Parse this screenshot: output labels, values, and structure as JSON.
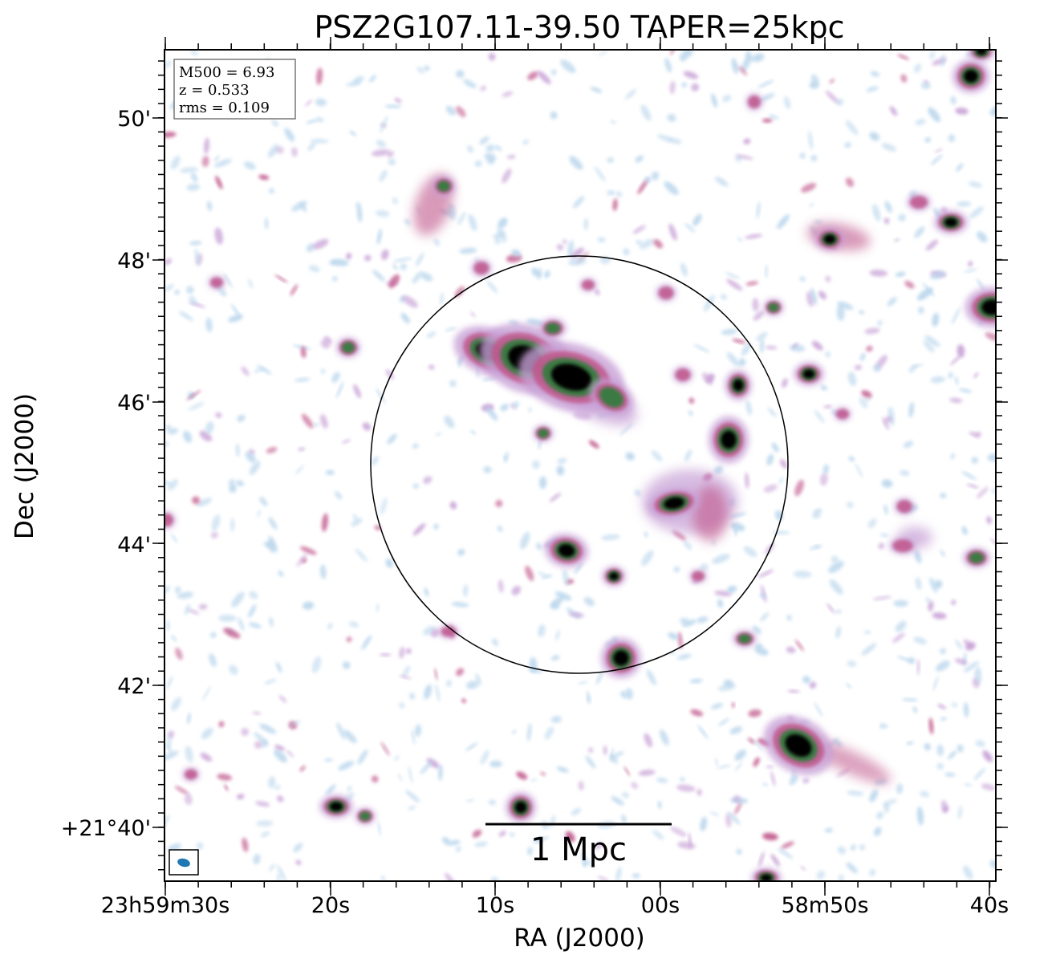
{
  "title": "PSZ2G107.11-39.50 TAPER=25kpc",
  "xlabel": "RA (J2000)",
  "ylabel": "Dec (J2000)",
  "xticks": [
    "23h59m30s",
    "20s",
    "10s",
    "00s",
    "58m50s",
    "40s"
  ],
  "yticks": [
    "50'",
    "48'",
    "46'",
    "44'",
    "42'",
    "+21°40'"
  ],
  "info": {
    "m500": "M500 = 6.93",
    "z": "z = 0.533",
    "rms": "rms = 0.109"
  },
  "scalebar_label": "1 Mpc",
  "colors": {
    "faint": "#b9d6ec",
    "low": "#c7a0d6",
    "mid": "#c0578a",
    "high": "#2e7d3a",
    "peak": "#000000",
    "beam": "#1f77b4"
  }
}
